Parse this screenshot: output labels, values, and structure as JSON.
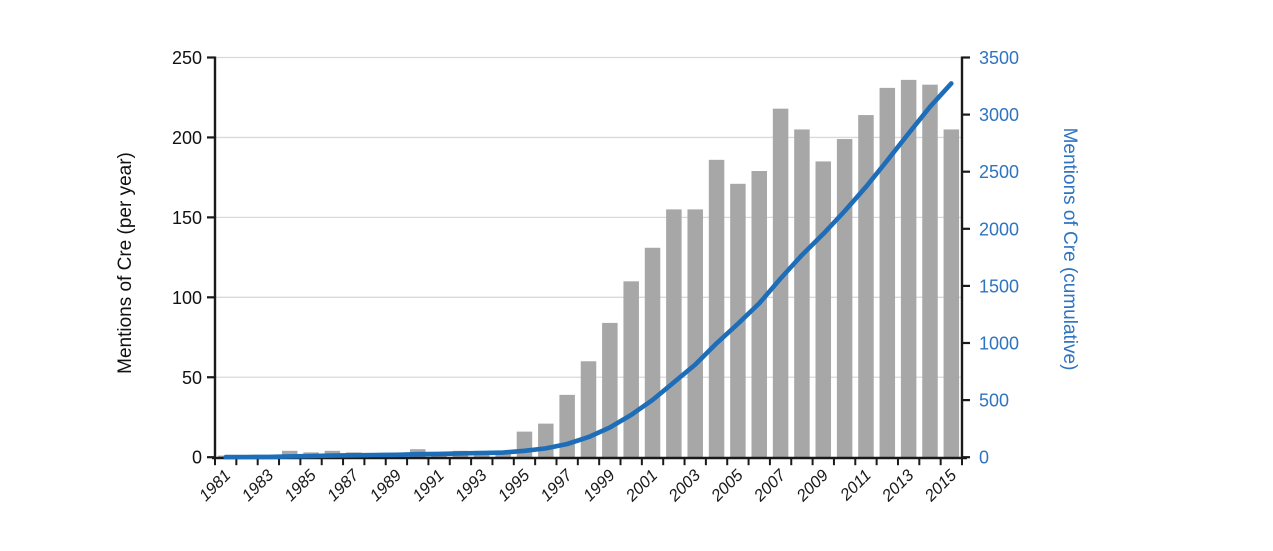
{
  "chart_data": {
    "type": "bar",
    "combo": "bar+line",
    "title": "",
    "categories": [
      1981,
      1982,
      1983,
      1984,
      1985,
      1986,
      1987,
      1988,
      1989,
      1990,
      1991,
      1992,
      1993,
      1994,
      1995,
      1996,
      1997,
      1998,
      1999,
      2000,
      2001,
      2002,
      2003,
      2004,
      2005,
      2006,
      2007,
      2008,
      2009,
      2010,
      2011,
      2012,
      2013,
      2014,
      2015
    ],
    "series": [
      {
        "name": "Mentions of Cre (per year)",
        "type": "bar",
        "axis": "left",
        "values": [
          1,
          1,
          1,
          4,
          3,
          4,
          3,
          2,
          2,
          5,
          3,
          4,
          4,
          3,
          16,
          21,
          39,
          60,
          84,
          110,
          131,
          155,
          155,
          186,
          171,
          179,
          218,
          205,
          185,
          199,
          214,
          231,
          236,
          233,
          205
        ]
      },
      {
        "name": "Mentions of Cre (cumulative)",
        "type": "line",
        "axis": "right",
        "values": [
          1,
          2,
          3,
          7,
          10,
          14,
          17,
          19,
          21,
          26,
          29,
          33,
          37,
          40,
          56,
          77,
          116,
          176,
          260,
          370,
          501,
          656,
          811,
          997,
          1168,
          1347,
          1565,
          1770,
          1955,
          2154,
          2368,
          2599,
          2835,
          3068,
          3273
        ]
      }
    ],
    "left_axis": {
      "label": "Mentions of Cre (per year)",
      "min": 0,
      "max": 250,
      "tick_step": 50,
      "tick_labels": [
        "0",
        "50",
        "100",
        "150",
        "200",
        "250"
      ]
    },
    "right_axis": {
      "label": "Mentions of Cre (cumulative)",
      "min": 0,
      "max": 3500,
      "tick_step": 500,
      "tick_labels": [
        "0",
        "500",
        "1000",
        "1500",
        "2000",
        "2500",
        "3000",
        "3500"
      ]
    },
    "x_axis": {
      "shown_tick_labels": [
        "1981",
        "1983",
        "1985",
        "1987",
        "1989",
        "1991",
        "1993",
        "1995",
        "1997",
        "1999",
        "2001",
        "2003",
        "2005",
        "2007",
        "2009",
        "2011",
        "2013",
        "2015"
      ],
      "label_every_n_years": 2,
      "label_rotation_deg": -45
    },
    "grid": true,
    "legend": "none",
    "colors": {
      "bar": "#a7a7a7",
      "line": "#1e6db8",
      "grid": "#d9d9d9",
      "axis": "#1a1a1a",
      "left_text": "#111111",
      "right_text": "#2e74c0"
    }
  }
}
